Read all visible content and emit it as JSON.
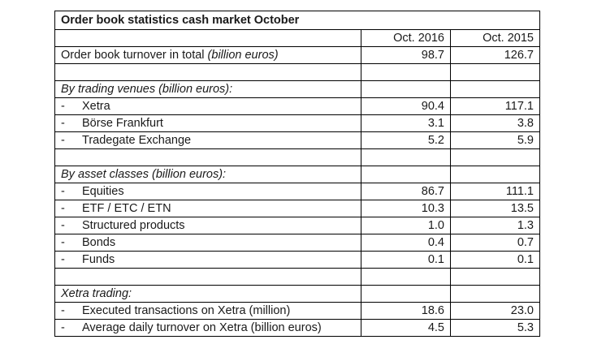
{
  "title": "Order book statistics cash market October",
  "columns": [
    "Oct. 2016",
    "Oct. 2015"
  ],
  "total": {
    "label": "Order book turnover in total",
    "unit": "(billion euros)",
    "a": "98.7",
    "b": "126.7"
  },
  "venues": {
    "heading": "By trading venues  (billion euros):",
    "rows": [
      {
        "label": "Xetra",
        "a": "90.4",
        "b": "117.1"
      },
      {
        "label": "Börse Frankfurt",
        "a": "3.1",
        "b": "3.8"
      },
      {
        "label": "Tradegate Exchange",
        "a": "5.2",
        "b": "5.9"
      }
    ]
  },
  "assets": {
    "heading": "By asset classes (billion euros):",
    "rows": [
      {
        "label": "Equities",
        "a": "86.7",
        "b": "111.1"
      },
      {
        "label": "ETF / ETC / ETN",
        "a": "10.3",
        "b": "13.5"
      },
      {
        "label": "Structured products",
        "a": "1.0",
        "b": "1.3"
      },
      {
        "label": "Bonds",
        "a": "0.4",
        "b": "0.7"
      },
      {
        "label": "Funds",
        "a": "0.1",
        "b": "0.1"
      }
    ]
  },
  "xetra": {
    "heading": "Xetra trading:",
    "rows": [
      {
        "label": "Executed transactions on Xetra (million)",
        "a": "18.6",
        "b": "23.0"
      },
      {
        "label": "Average daily turnover on Xetra (billion euros)",
        "a": "4.5",
        "b": "5.3"
      }
    ]
  },
  "dash": "-"
}
